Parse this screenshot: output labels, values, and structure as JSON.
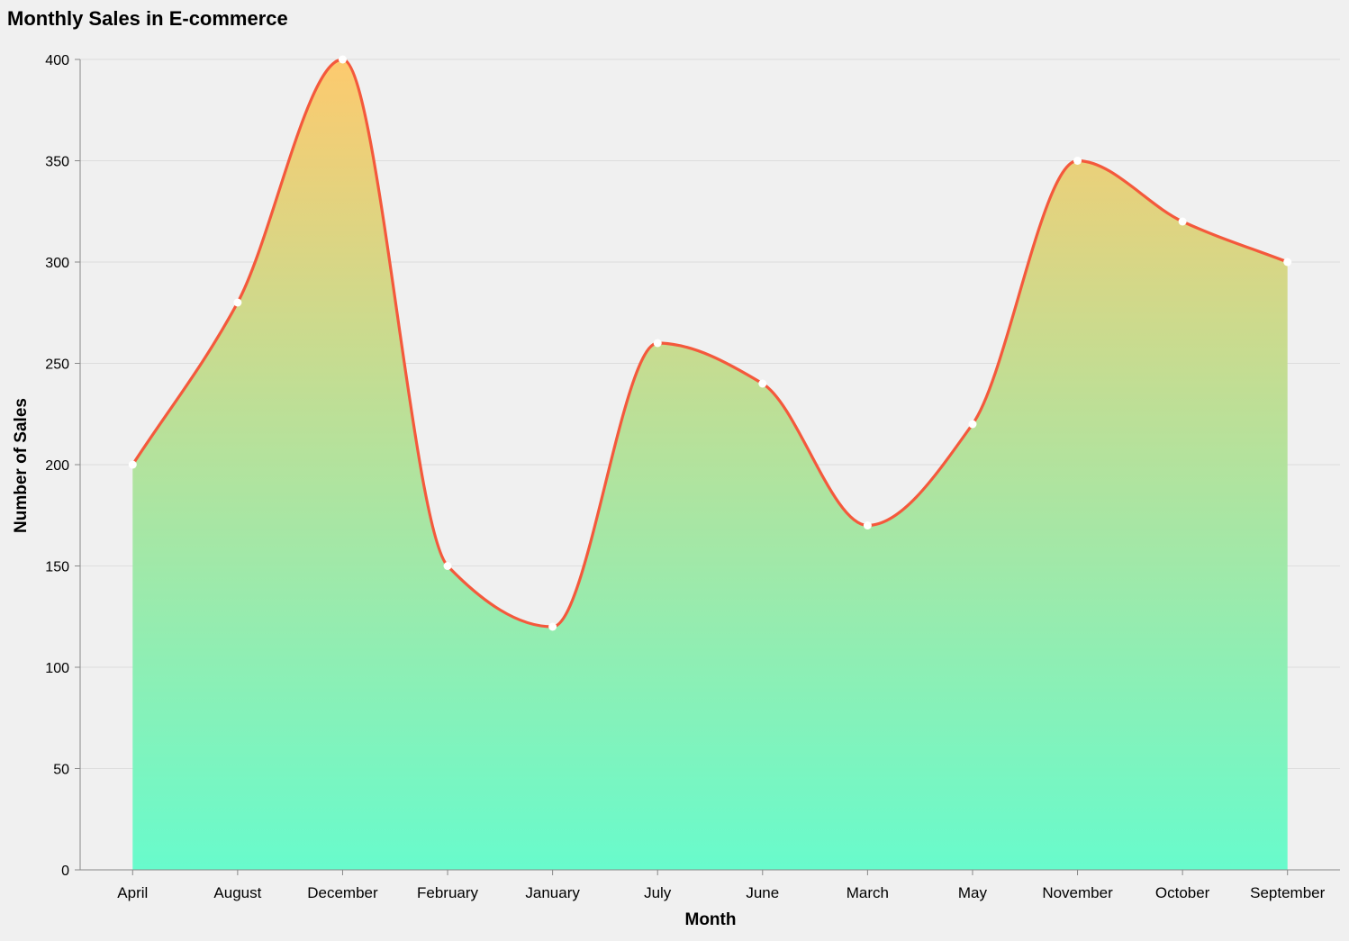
{
  "chart_data": {
    "type": "area",
    "title": "Monthly Sales in E-commerce",
    "xlabel": "Month",
    "ylabel": "Number of Sales",
    "categories": [
      "April",
      "August",
      "December",
      "February",
      "January",
      "July",
      "June",
      "March",
      "May",
      "November",
      "October",
      "September"
    ],
    "values": [
      200,
      280,
      400,
      150,
      120,
      260,
      240,
      170,
      220,
      350,
      320,
      300
    ],
    "ylim": [
      0,
      400
    ],
    "yticks": [
      0,
      50,
      100,
      150,
      200,
      250,
      300,
      350,
      400
    ],
    "grid": true,
    "interpolation": "monotone",
    "colors": {
      "line": "#f4593c",
      "area_top": "#fdca6e",
      "area_bottom": "#68fbcc",
      "point": "#ffffff",
      "grid": "#dddddd",
      "axis": "#888888",
      "text": "#000000"
    }
  }
}
